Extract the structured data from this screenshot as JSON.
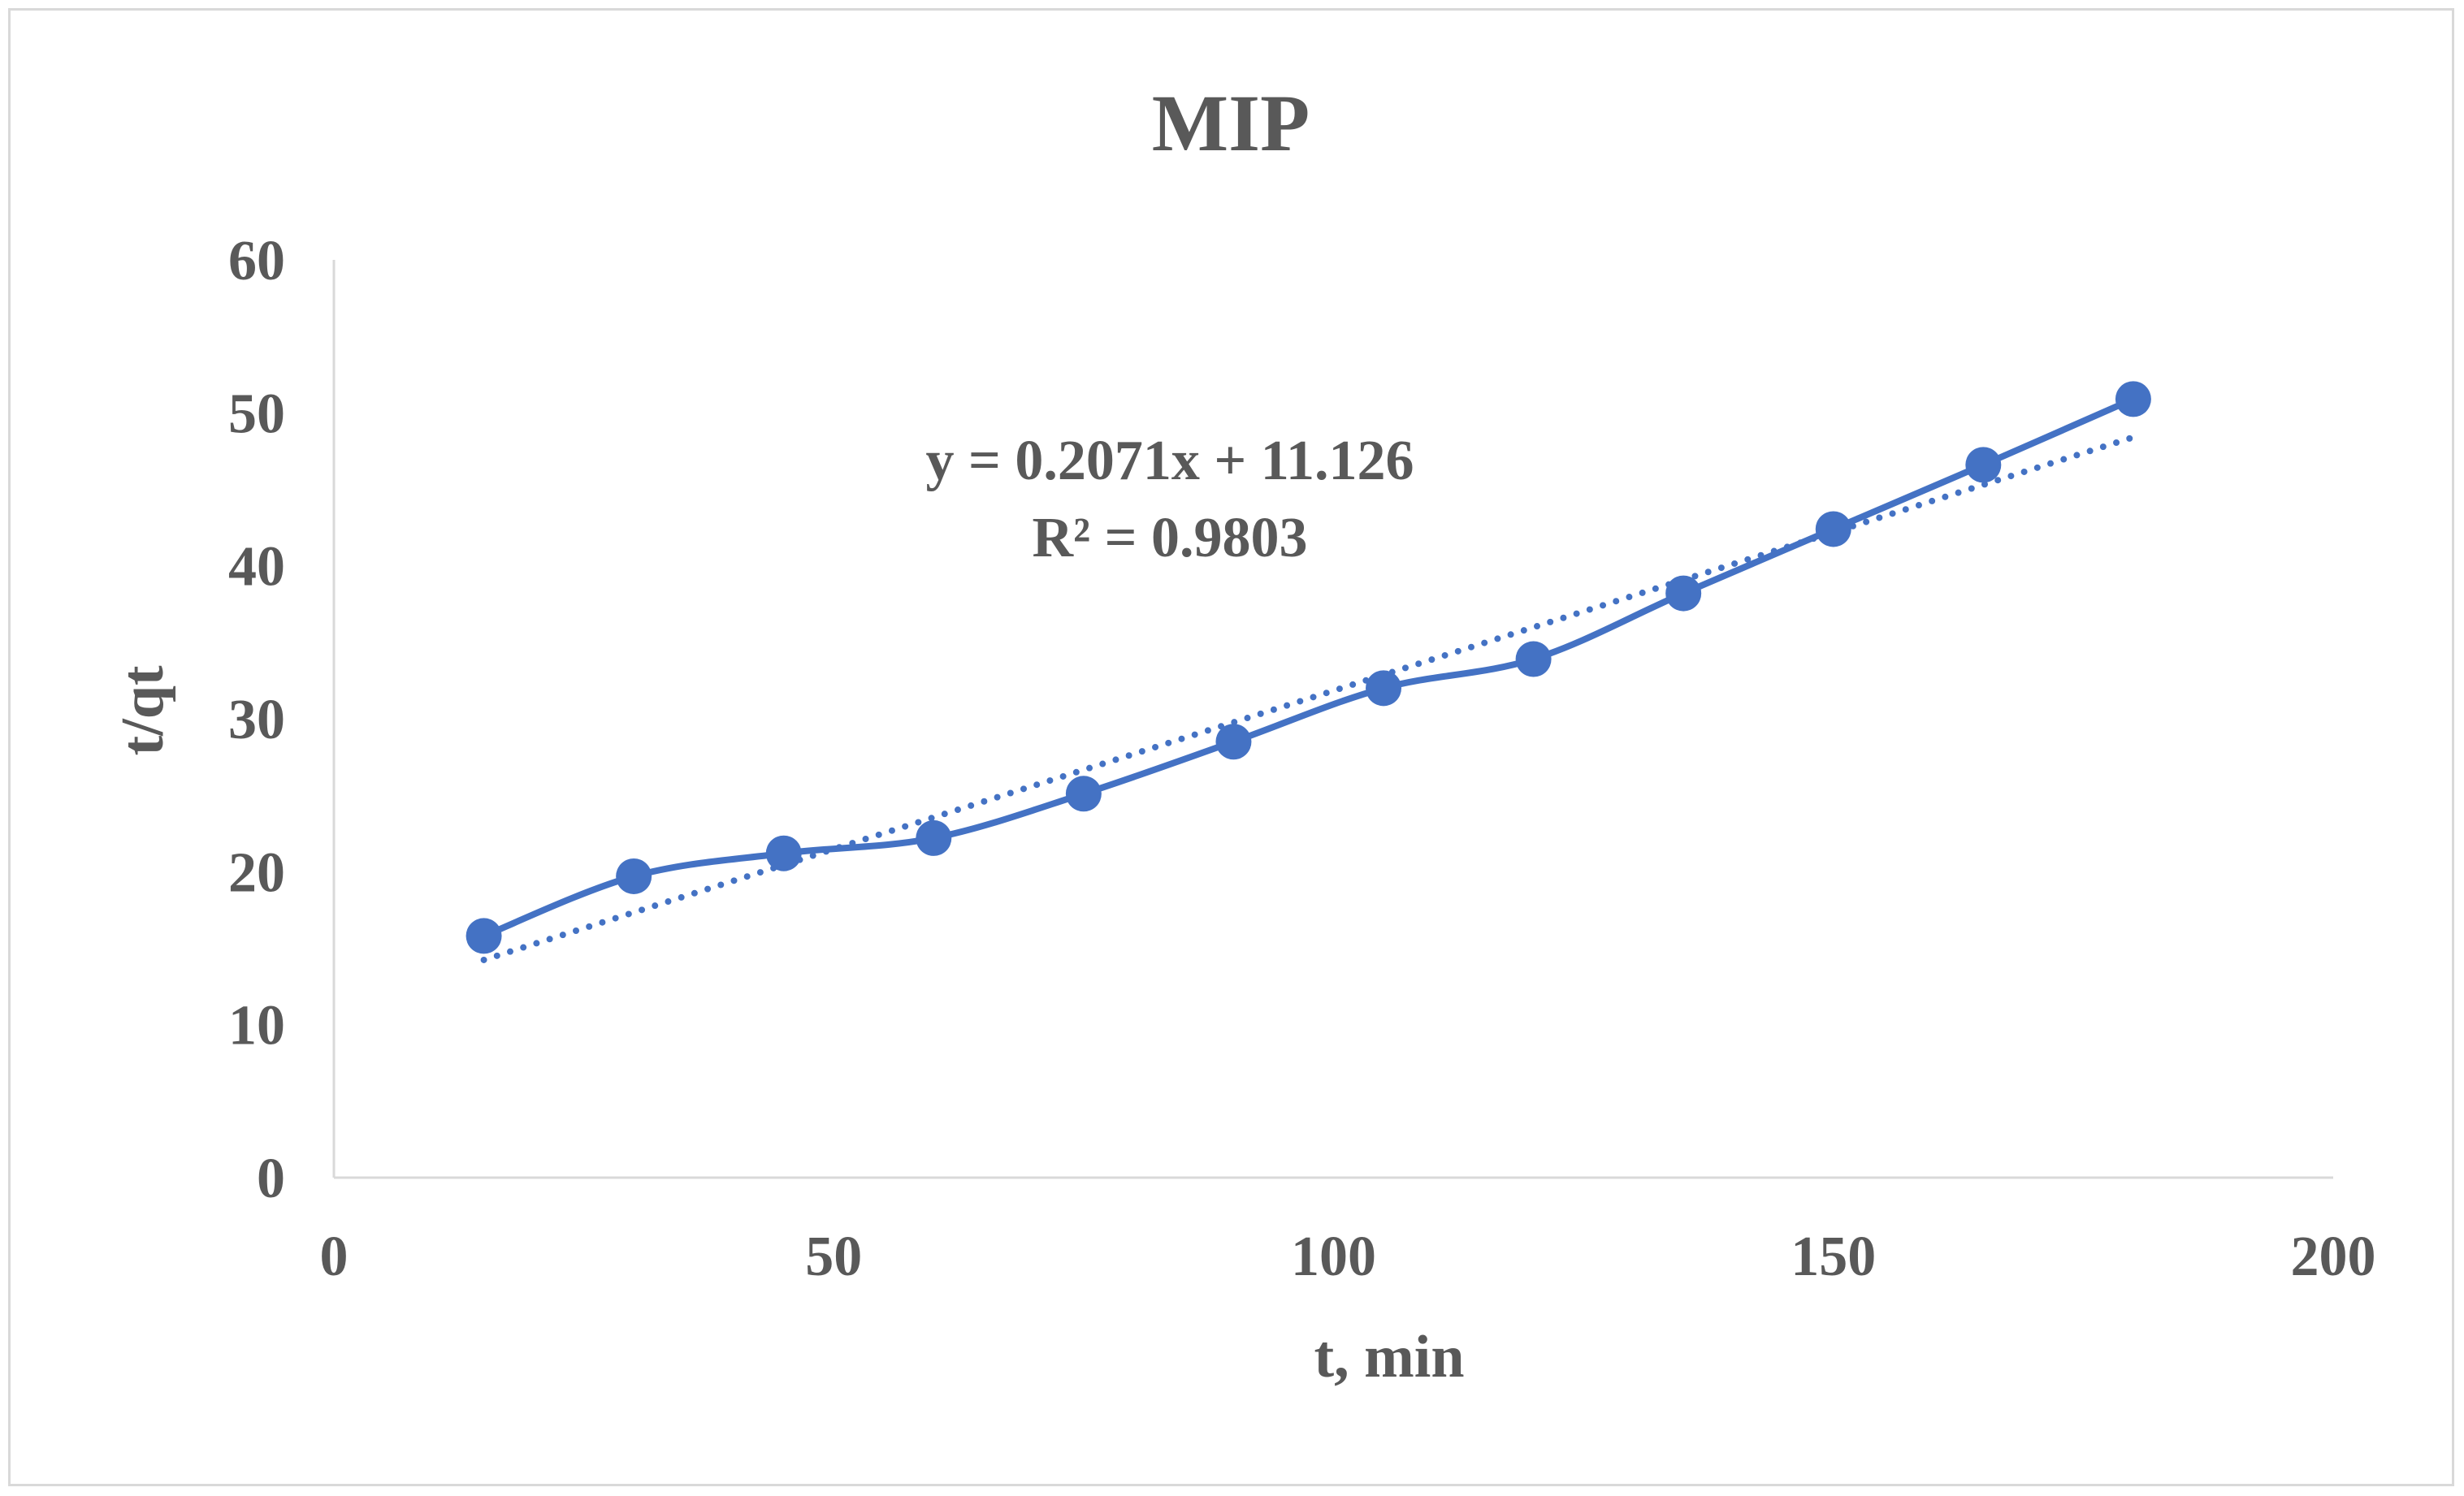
{
  "chart_data": {
    "type": "scatter",
    "title": "MIP",
    "xlabel": "t, min",
    "ylabel": "t/qt",
    "xlim": [
      0,
      200
    ],
    "ylim": [
      0,
      60
    ],
    "x_ticks": [
      0,
      50,
      100,
      150,
      200
    ],
    "y_ticks": [
      0,
      10,
      20,
      30,
      40,
      50,
      60
    ],
    "grid": false,
    "series": [
      {
        "name": "t/qt",
        "color": "#4472c4",
        "line": "smooth",
        "marker": "circle",
        "x": [
          15,
          30,
          45,
          60,
          75,
          90,
          105,
          120,
          135,
          150,
          165,
          180
        ],
        "y": [
          15.8,
          19.7,
          21.2,
          22.2,
          25.1,
          28.5,
          32.0,
          33.9,
          38.2,
          42.4,
          46.6,
          50.9
        ]
      }
    ],
    "trendline": {
      "type": "linear",
      "style": "dotted",
      "color": "#4472c4",
      "slope": 0.2071,
      "intercept": 11.126,
      "equation": "y = 0.2071x + 11.126",
      "r_squared": "R² = 0.9803"
    }
  }
}
